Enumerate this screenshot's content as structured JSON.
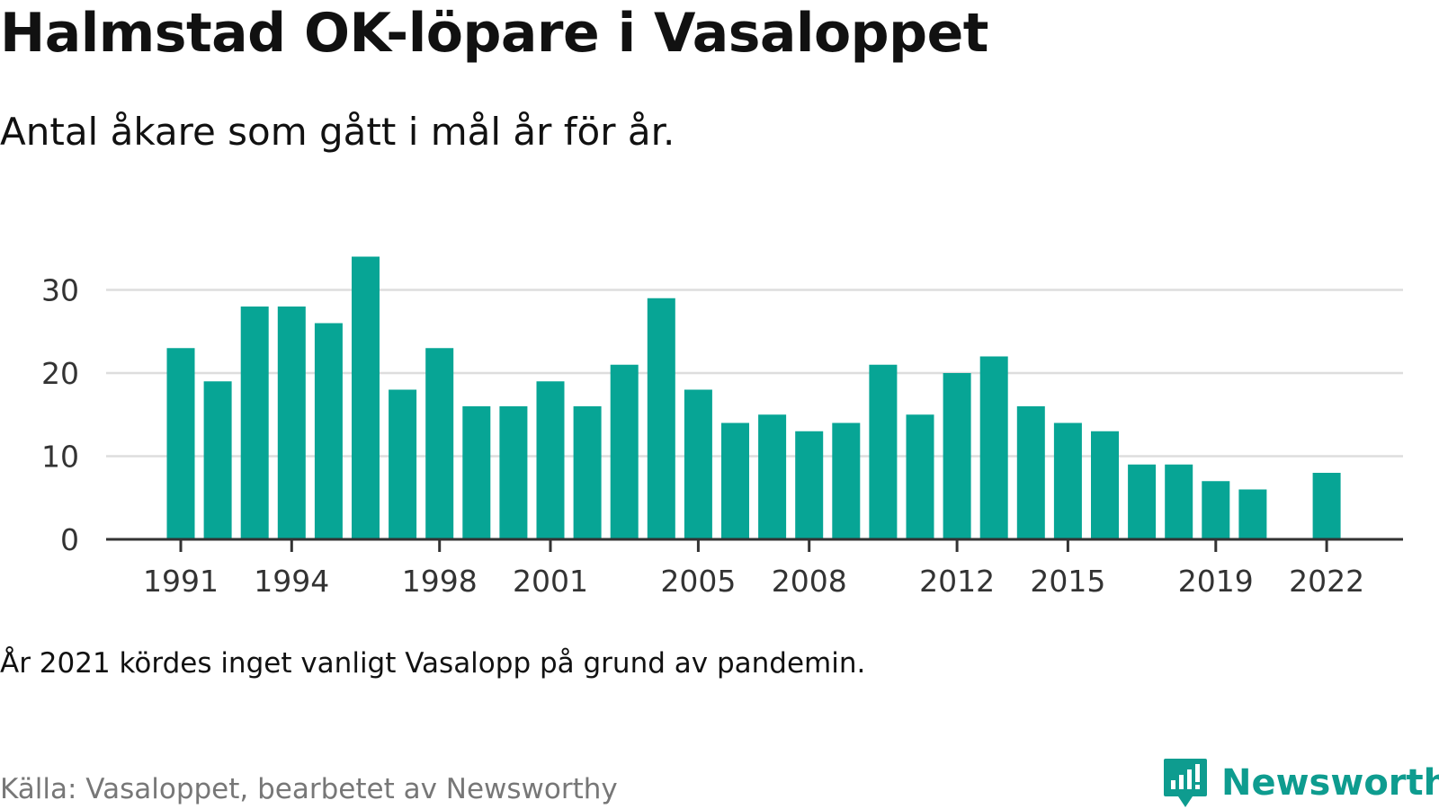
{
  "header": {
    "title": "Halmstad OK-löpare i Vasaloppet",
    "subtitle": "Antal åkare som gått i mål år för år."
  },
  "footer": {
    "note": "År 2021 kördes inget vanligt Vasalopp på grund av pandemin.",
    "source": "Källa: Vasaloppet, bearbetet av Newsworthy",
    "brand": "Newsworthy"
  },
  "colors": {
    "bar": "#07a595",
    "grid": "#dddddd",
    "axis": "#333333",
    "brand": "#0e9c8f"
  },
  "chart_data": {
    "type": "bar",
    "title": "Halmstad OK-löpare i Vasaloppet",
    "subtitle": "Antal åkare som gått i mål år för år.",
    "xlabel": "",
    "ylabel": "",
    "ylim": [
      0,
      35
    ],
    "yticks": [
      0,
      10,
      20,
      30
    ],
    "xticks": [
      1991,
      1994,
      1998,
      2001,
      2005,
      2008,
      2012,
      2015,
      2019,
      2022
    ],
    "grid": true,
    "categories": [
      1991,
      1992,
      1993,
      1994,
      1995,
      1996,
      1997,
      1998,
      1999,
      2000,
      2001,
      2002,
      2003,
      2004,
      2005,
      2006,
      2007,
      2008,
      2009,
      2010,
      2011,
      2012,
      2013,
      2014,
      2015,
      2016,
      2017,
      2018,
      2019,
      2020,
      2021,
      2022
    ],
    "values": [
      23,
      19,
      28,
      28,
      26,
      34,
      18,
      23,
      16,
      16,
      19,
      16,
      21,
      29,
      18,
      14,
      15,
      13,
      14,
      21,
      15,
      20,
      22,
      16,
      14,
      13,
      9,
      9,
      7,
      6,
      null,
      8
    ]
  }
}
